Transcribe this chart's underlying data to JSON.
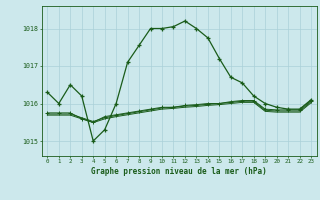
{
  "xlabel": "Graphe pression niveau de la mer (hPa)",
  "background_color": "#cce8ec",
  "grid_color": "#aad0d8",
  "line_color": "#1a5c1a",
  "ylim": [
    1014.6,
    1018.6
  ],
  "xlim": [
    -0.5,
    23.5
  ],
  "yticks": [
    1015,
    1016,
    1017,
    1018
  ],
  "xticks": [
    0,
    1,
    2,
    3,
    4,
    5,
    6,
    7,
    8,
    9,
    10,
    11,
    12,
    13,
    14,
    15,
    16,
    17,
    18,
    19,
    20,
    21,
    22,
    23
  ],
  "series1_x": [
    0,
    1,
    2,
    3,
    4,
    5,
    6,
    7,
    8,
    9,
    10,
    11,
    12,
    13,
    14,
    15,
    16,
    17,
    18,
    19,
    20,
    21,
    22,
    23
  ],
  "series1_y": [
    1016.3,
    1016.0,
    1016.5,
    1016.2,
    1015.0,
    1015.3,
    1016.0,
    1017.1,
    1017.55,
    1018.0,
    1018.0,
    1018.05,
    1018.2,
    1018.0,
    1017.75,
    1017.2,
    1016.7,
    1016.55,
    1016.2,
    1016.0,
    1015.9,
    1015.85,
    1015.85,
    1016.1
  ],
  "series2_x": [
    0,
    1,
    2,
    3,
    4,
    5,
    6,
    7,
    8,
    9,
    10,
    11,
    12,
    13,
    14,
    15,
    16,
    17,
    18,
    19,
    20,
    21,
    22,
    23
  ],
  "series2_y": [
    1015.75,
    1015.75,
    1015.75,
    1015.6,
    1015.5,
    1015.65,
    1015.7,
    1015.75,
    1015.8,
    1015.85,
    1015.9,
    1015.9,
    1015.95,
    1015.97,
    1016.0,
    1016.0,
    1016.05,
    1016.08,
    1016.08,
    1015.85,
    1015.83,
    1015.83,
    1015.83,
    1016.08
  ],
  "series3_x": [
    0,
    1,
    2,
    3,
    4,
    5,
    6,
    7,
    8,
    9,
    10,
    11,
    12,
    13,
    14,
    15,
    16,
    17,
    18,
    19,
    20,
    21,
    22,
    23
  ],
  "series3_y": [
    1015.72,
    1015.72,
    1015.72,
    1015.62,
    1015.52,
    1015.62,
    1015.68,
    1015.73,
    1015.78,
    1015.83,
    1015.88,
    1015.9,
    1015.93,
    1015.95,
    1015.98,
    1016.0,
    1016.03,
    1016.06,
    1016.06,
    1015.82,
    1015.8,
    1015.8,
    1015.8,
    1016.05
  ],
  "series4_x": [
    0,
    1,
    2,
    3,
    4,
    5,
    6,
    7,
    8,
    9,
    10,
    11,
    12,
    13,
    14,
    15,
    16,
    17,
    18,
    19,
    20,
    21,
    22,
    23
  ],
  "series4_y": [
    1015.69,
    1015.69,
    1015.69,
    1015.59,
    1015.49,
    1015.59,
    1015.65,
    1015.7,
    1015.75,
    1015.8,
    1015.85,
    1015.87,
    1015.9,
    1015.92,
    1015.95,
    1015.97,
    1016.0,
    1016.03,
    1016.03,
    1015.79,
    1015.77,
    1015.77,
    1015.77,
    1016.02
  ]
}
